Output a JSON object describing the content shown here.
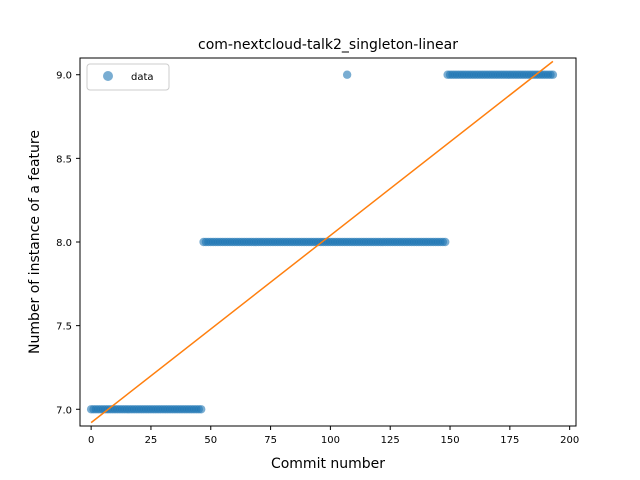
{
  "chart_data": {
    "type": "scatter",
    "title": "com-nextcloud-talk2_singleton-linear",
    "xlabel": "Commit number",
    "ylabel": "Number of instance of a feature",
    "xlim": [
      -4.65,
      202.65
    ],
    "ylim": [
      6.9,
      9.1
    ],
    "xticks": [
      0,
      25,
      50,
      75,
      100,
      125,
      150,
      175,
      200
    ],
    "yticks": [
      7.0,
      7.5,
      8.0,
      8.5,
      9.0
    ],
    "ytick_labels": [
      "7.0",
      "7.5",
      "8.0",
      "8.5",
      "9.0"
    ],
    "grid": false,
    "legend": {
      "placement": "upper left",
      "entries": [
        "data"
      ]
    },
    "series": [
      {
        "name": "data",
        "kind": "scatter",
        "color": "#1f77b4",
        "alpha": 0.6,
        "segments": [
          {
            "x_start": 0,
            "x_end": 46,
            "y": 7.0
          },
          {
            "x_start": 47,
            "x_end": 148,
            "y": 8.0
          },
          {
            "x_start": 149,
            "x_end": 193,
            "y": 9.0
          }
        ],
        "extra_points": [
          {
            "x": 107,
            "y": 9.0
          }
        ]
      },
      {
        "kind": "line",
        "color": "#ff7f0e",
        "x": [
          0,
          193
        ],
        "y": [
          6.92,
          9.08
        ]
      }
    ]
  }
}
